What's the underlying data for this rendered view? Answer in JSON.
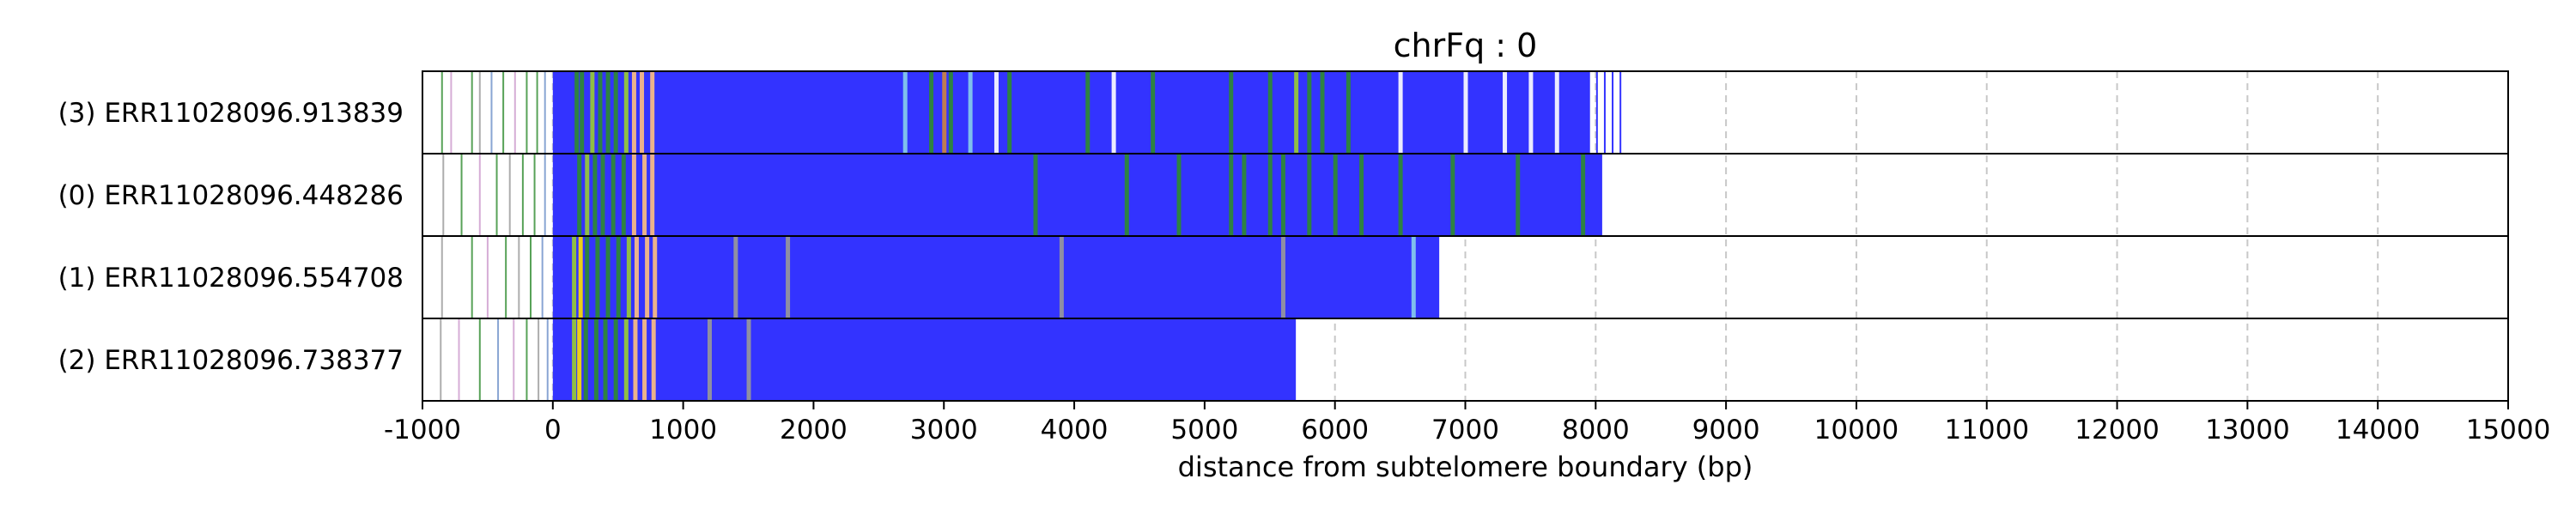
{
  "chart_data": {
    "type": "bar",
    "title": "chrFq : 0",
    "xlabel": "distance from subtelomere boundary (bp)",
    "ylabel": "",
    "xlim": [
      -1000,
      15000
    ],
    "xticks": [
      "-1000",
      "0",
      "1000",
      "2000",
      "3000",
      "4000",
      "5000",
      "6000",
      "7000",
      "8000",
      "9000",
      "10000",
      "11000",
      "12000",
      "13000",
      "14000",
      "15000"
    ],
    "grid": "vertical dashed at x ticks",
    "reads": [
      {
        "label": "(3) ERR11028096.913839",
        "end": 8200,
        "solid_end": 7950,
        "lead_lines": [
          [
            -850,
            "#2e8b2e"
          ],
          [
            -780,
            "#cc99cc"
          ],
          [
            -620,
            "#2e8b2e"
          ],
          [
            -560,
            "#999999"
          ],
          [
            -470,
            "#6b8ec8"
          ],
          [
            -380,
            "#2e8b2e"
          ],
          [
            -290,
            "#cc99cc"
          ],
          [
            -200,
            "#2e8b2e"
          ],
          [
            -120,
            "#2e8b2e"
          ],
          [
            -60,
            "#6b8ec8"
          ]
        ],
        "accents": [
          [
            180,
            "#2e8b2e"
          ],
          [
            220,
            "#2e8b2e"
          ],
          [
            300,
            "#9acd32"
          ],
          [
            360,
            "#2e8b2e"
          ],
          [
            420,
            "#2e8b2e"
          ],
          [
            480,
            "#2e8b2e"
          ],
          [
            560,
            "#9acd32"
          ],
          [
            620,
            "#ffc080"
          ],
          [
            680,
            "#ffc080"
          ],
          [
            760,
            "#ffc080"
          ],
          [
            2700,
            "#87ceeb"
          ],
          [
            2900,
            "#2e8b2e"
          ],
          [
            3000,
            "#cd853f"
          ],
          [
            3050,
            "#2e8b2e"
          ],
          [
            3200,
            "#87ceeb"
          ],
          [
            3400,
            "#ffffff"
          ],
          [
            3500,
            "#2e8b2e"
          ],
          [
            4100,
            "#2e8b2e"
          ],
          [
            4300,
            "#ffffff"
          ],
          [
            4600,
            "#2e8b2e"
          ],
          [
            5200,
            "#2e8b2e"
          ],
          [
            5500,
            "#2e8b2e"
          ],
          [
            5700,
            "#9acd32"
          ],
          [
            5800,
            "#2e8b2e"
          ],
          [
            5900,
            "#2e8b2e"
          ],
          [
            6100,
            "#2e8b2e"
          ],
          [
            6500,
            "#ffffff"
          ],
          [
            7000,
            "#ffffff"
          ],
          [
            7300,
            "#ffffff"
          ],
          [
            7500,
            "#ffffff"
          ],
          [
            7700,
            "#ffffff"
          ]
        ]
      },
      {
        "label": "(0) ERR11028096.448286",
        "end": 8050,
        "solid_end": 8050,
        "lead_lines": [
          [
            -840,
            "#999999"
          ],
          [
            -700,
            "#2e8b2e"
          ],
          [
            -560,
            "#cc99cc"
          ],
          [
            -430,
            "#2e8b2e"
          ],
          [
            -330,
            "#999999"
          ],
          [
            -230,
            "#2e8b2e"
          ],
          [
            -140,
            "#2e8b2e"
          ],
          [
            -60,
            "#6b8ec8"
          ]
        ],
        "accents": [
          [
            200,
            "#2e8b2e"
          ],
          [
            260,
            "#9acd32"
          ],
          [
            320,
            "#2e8b2e"
          ],
          [
            380,
            "#2e8b2e"
          ],
          [
            460,
            "#2e8b2e"
          ],
          [
            540,
            "#2e8b2e"
          ],
          [
            620,
            "#ffc080"
          ],
          [
            700,
            "#ffc080"
          ],
          [
            760,
            "#ffc080"
          ],
          [
            3700,
            "#2e8b2e"
          ],
          [
            4400,
            "#2e8b2e"
          ],
          [
            4800,
            "#2e8b2e"
          ],
          [
            5200,
            "#2e8b2e"
          ],
          [
            5300,
            "#2e8b2e"
          ],
          [
            5500,
            "#2e8b2e"
          ],
          [
            5600,
            "#2e8b2e"
          ],
          [
            5800,
            "#2e8b2e"
          ],
          [
            6000,
            "#2e8b2e"
          ],
          [
            6200,
            "#2e8b2e"
          ],
          [
            6500,
            "#2e8b2e"
          ],
          [
            6900,
            "#2e8b2e"
          ],
          [
            7400,
            "#2e8b2e"
          ],
          [
            7900,
            "#2e8b2e"
          ]
        ]
      },
      {
        "label": "(1) ERR11028096.554708",
        "end": 6800,
        "solid_end": 6800,
        "lead_lines": [
          [
            -850,
            "#999999"
          ],
          [
            -620,
            "#2e8b2e"
          ],
          [
            -500,
            "#cc99cc"
          ],
          [
            -360,
            "#2e8b2e"
          ],
          [
            -260,
            "#999999"
          ],
          [
            -170,
            "#2e8b2e"
          ],
          [
            -80,
            "#6b8ec8"
          ]
        ],
        "accents": [
          [
            160,
            "#9acd32"
          ],
          [
            210,
            "#ffe000"
          ],
          [
            260,
            "#2e8b2e"
          ],
          [
            340,
            "#2e8b2e"
          ],
          [
            420,
            "#2e8b2e"
          ],
          [
            500,
            "#2e8b2e"
          ],
          [
            580,
            "#9acd32"
          ],
          [
            640,
            "#ffc080"
          ],
          [
            720,
            "#ffc080"
          ],
          [
            780,
            "#ffc080"
          ],
          [
            1400,
            "#999999"
          ],
          [
            1800,
            "#999999"
          ],
          [
            3900,
            "#999999"
          ],
          [
            5600,
            "#999999"
          ],
          [
            6600,
            "#87ceeb"
          ]
        ]
      },
      {
        "label": "(2) ERR11028096.738377",
        "end": 5700,
        "solid_end": 5700,
        "lead_lines": [
          [
            -860,
            "#999999"
          ],
          [
            -720,
            "#cc99cc"
          ],
          [
            -560,
            "#2e8b2e"
          ],
          [
            -420,
            "#6b8ec8"
          ],
          [
            -300,
            "#cc99cc"
          ],
          [
            -200,
            "#2e8b2e"
          ],
          [
            -110,
            "#999999"
          ],
          [
            -40,
            "#6b8ec8"
          ]
        ],
        "accents": [
          [
            160,
            "#9acd32"
          ],
          [
            200,
            "#ffe000"
          ],
          [
            250,
            "#2e8b2e"
          ],
          [
            330,
            "#2e8b2e"
          ],
          [
            400,
            "#2e8b2e"
          ],
          [
            480,
            "#2e8b2e"
          ],
          [
            560,
            "#9acd32"
          ],
          [
            630,
            "#ffc080"
          ],
          [
            700,
            "#ffc080"
          ],
          [
            770,
            "#ffc080"
          ],
          [
            1200,
            "#999999"
          ],
          [
            1500,
            "#999999"
          ]
        ]
      }
    ],
    "colors": {
      "repeat": "#3333ff",
      "frame": "#000000",
      "grid": "#c8c8c8"
    }
  }
}
